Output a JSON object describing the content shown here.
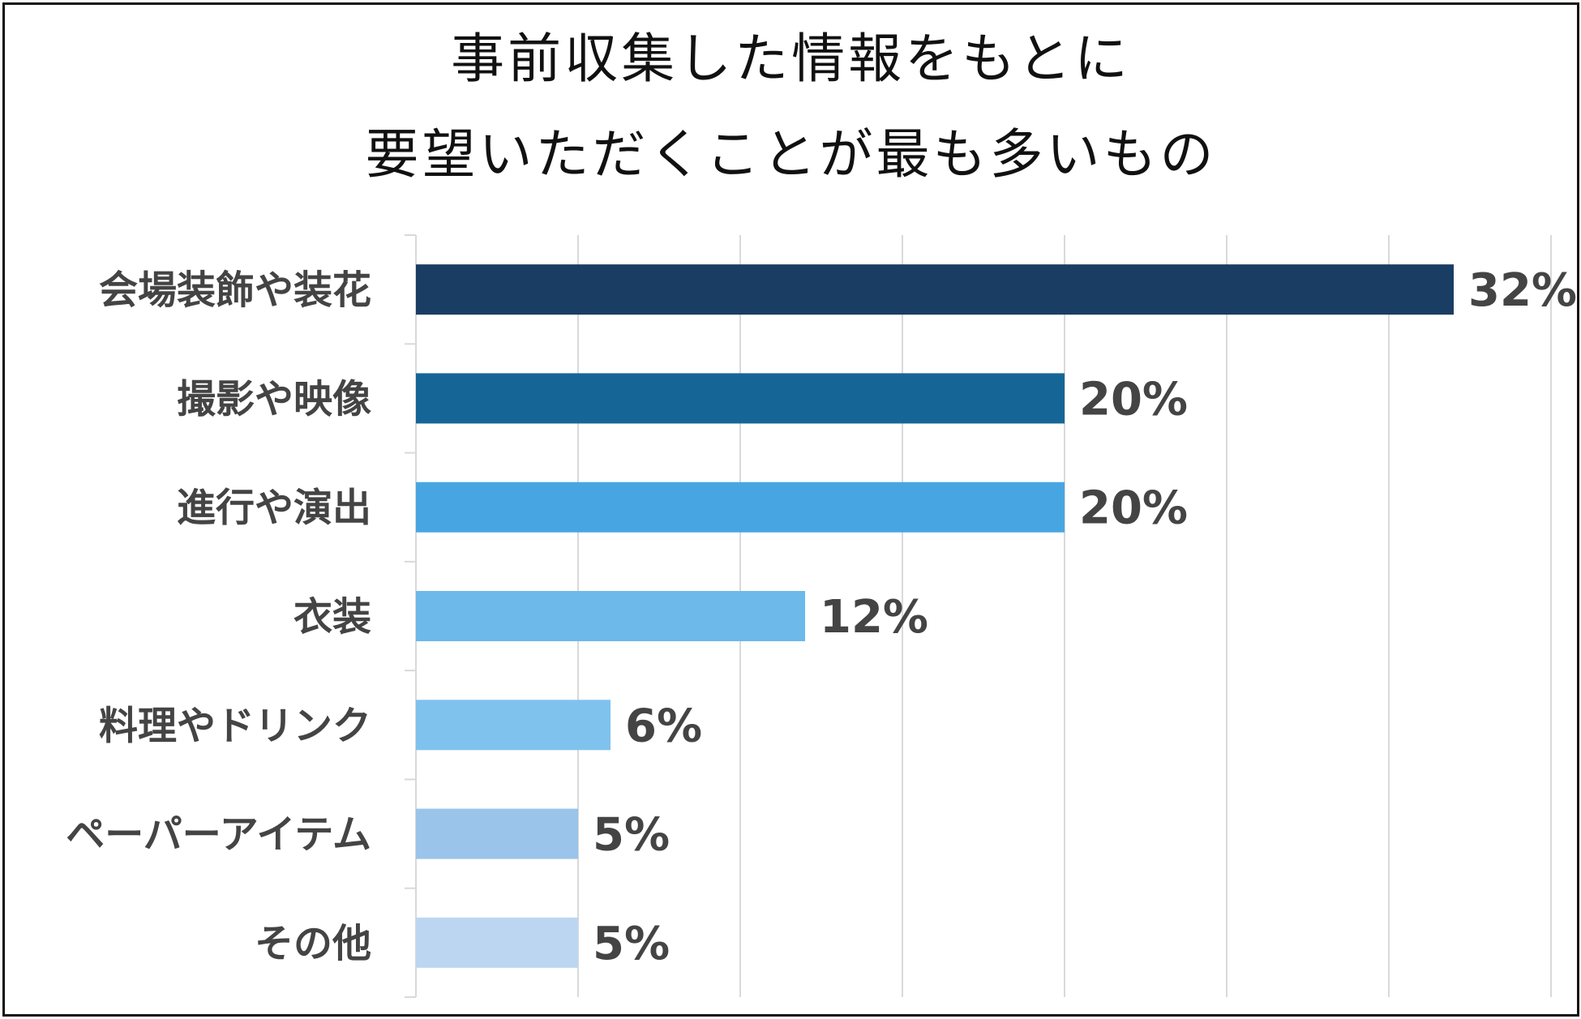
{
  "chart_data": {
    "type": "bar",
    "orientation": "horizontal",
    "title": [
      "事前収集した情報をもとに",
      "要望いただくことが最も多いもの"
    ],
    "categories": [
      "会場装飾や装花",
      "撮影や映像",
      "進行や演出",
      "衣装",
      "料理やドリンク",
      "ペーパーアイテム",
      "その他"
    ],
    "values": [
      32,
      20,
      20,
      12,
      6,
      5,
      5
    ],
    "value_labels": [
      "32%",
      "20%",
      "20%",
      "12%",
      "6%",
      "5%",
      "5%"
    ],
    "colors": [
      "#1a3d64",
      "#156696",
      "#47a6e2",
      "#6cb9ea",
      "#80c2ee",
      "#9bc4ea",
      "#bcd6f1"
    ],
    "xlim": [
      0,
      35
    ],
    "grid": true,
    "legend": "none"
  }
}
